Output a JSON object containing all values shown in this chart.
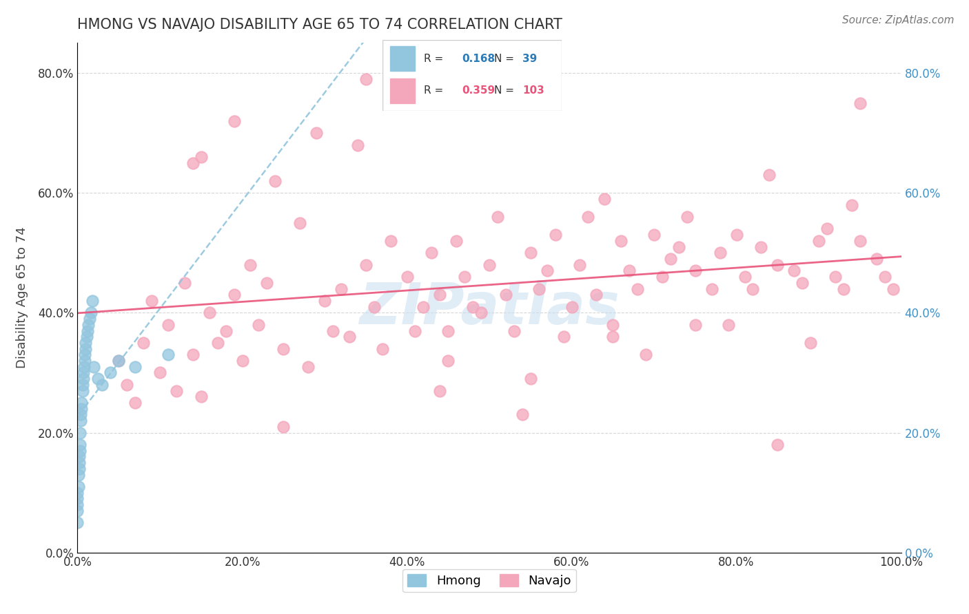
{
  "title": "HMONG VS NAVAJO DISABILITY AGE 65 TO 74 CORRELATION CHART",
  "source_text": "Source: ZipAtlas.com",
  "ylabel": "Disability Age 65 to 74",
  "xlim": [
    0.0,
    1.0
  ],
  "ylim": [
    0.0,
    0.85
  ],
  "xticks": [
    0.0,
    0.2,
    0.4,
    0.6,
    0.8,
    1.0
  ],
  "yticks": [
    0.0,
    0.2,
    0.4,
    0.6,
    0.8
  ],
  "ytick_labels": [
    "0.0%",
    "20.0%",
    "40.0%",
    "60.0%",
    "80.0%"
  ],
  "xtick_labels": [
    "0.0%",
    "20.0%",
    "40.0%",
    "60.0%",
    "80.0%",
    "100.0%"
  ],
  "legend_r_hmong": "0.168",
  "legend_n_hmong": "39",
  "legend_r_navajo": "0.359",
  "legend_n_navajo": "103",
  "hmong_color": "#92c5de",
  "navajo_color": "#f4a6bb",
  "hmong_line_color": "#92c5de",
  "navajo_line_color": "#e8547a",
  "watermark": "ZIPatlas",
  "title_color": "#333333",
  "right_tick_color": "#4292c6",
  "hmong_x": [
    0.0,
    0.0,
    0.0,
    0.0,
    0.0,
    0.001,
    0.001,
    0.002,
    0.002,
    0.002,
    0.003,
    0.003,
    0.003,
    0.004,
    0.004,
    0.005,
    0.005,
    0.006,
    0.006,
    0.007,
    0.007,
    0.008,
    0.009,
    0.009,
    0.01,
    0.01,
    0.011,
    0.012,
    0.013,
    0.015,
    0.016,
    0.018,
    0.02,
    0.025,
    0.03,
    0.04,
    0.05,
    0.07,
    0.11
  ],
  "hmong_y": [
    0.05,
    0.07,
    0.08,
    0.09,
    0.1,
    0.11,
    0.13,
    0.14,
    0.15,
    0.16,
    0.17,
    0.18,
    0.2,
    0.22,
    0.23,
    0.24,
    0.25,
    0.27,
    0.28,
    0.29,
    0.3,
    0.31,
    0.32,
    0.33,
    0.34,
    0.35,
    0.36,
    0.37,
    0.38,
    0.39,
    0.4,
    0.42,
    0.31,
    0.29,
    0.28,
    0.3,
    0.32,
    0.31,
    0.33
  ],
  "navajo_x": [
    0.05,
    0.06,
    0.07,
    0.08,
    0.09,
    0.1,
    0.11,
    0.12,
    0.13,
    0.14,
    0.15,
    0.16,
    0.17,
    0.18,
    0.19,
    0.2,
    0.21,
    0.22,
    0.23,
    0.25,
    0.27,
    0.28,
    0.3,
    0.31,
    0.32,
    0.33,
    0.35,
    0.36,
    0.37,
    0.38,
    0.4,
    0.41,
    0.42,
    0.43,
    0.44,
    0.45,
    0.46,
    0.47,
    0.48,
    0.5,
    0.51,
    0.52,
    0.53,
    0.55,
    0.56,
    0.57,
    0.58,
    0.6,
    0.61,
    0.62,
    0.63,
    0.65,
    0.66,
    0.67,
    0.68,
    0.7,
    0.71,
    0.72,
    0.73,
    0.75,
    0.77,
    0.78,
    0.8,
    0.81,
    0.82,
    0.83,
    0.85,
    0.87,
    0.88,
    0.9,
    0.91,
    0.92,
    0.93,
    0.95,
    0.97,
    0.98,
    0.99,
    0.14,
    0.24,
    0.34,
    0.44,
    0.54,
    0.64,
    0.74,
    0.84,
    0.94,
    0.19,
    0.29,
    0.39,
    0.49,
    0.59,
    0.69,
    0.79,
    0.89,
    0.35,
    0.55,
    0.75,
    0.95,
    0.25,
    0.65,
    0.45,
    0.85,
    0.15
  ],
  "navajo_y": [
    0.32,
    0.28,
    0.25,
    0.35,
    0.42,
    0.3,
    0.38,
    0.27,
    0.45,
    0.33,
    0.26,
    0.4,
    0.35,
    0.37,
    0.43,
    0.32,
    0.48,
    0.38,
    0.45,
    0.34,
    0.55,
    0.31,
    0.42,
    0.37,
    0.44,
    0.36,
    0.48,
    0.41,
    0.34,
    0.52,
    0.46,
    0.37,
    0.41,
    0.5,
    0.43,
    0.37,
    0.52,
    0.46,
    0.41,
    0.48,
    0.56,
    0.43,
    0.37,
    0.5,
    0.44,
    0.47,
    0.53,
    0.41,
    0.48,
    0.56,
    0.43,
    0.38,
    0.52,
    0.47,
    0.44,
    0.53,
    0.46,
    0.49,
    0.51,
    0.47,
    0.44,
    0.5,
    0.53,
    0.46,
    0.44,
    0.51,
    0.48,
    0.47,
    0.45,
    0.52,
    0.54,
    0.46,
    0.44,
    0.52,
    0.49,
    0.46,
    0.44,
    0.65,
    0.62,
    0.68,
    0.27,
    0.23,
    0.59,
    0.56,
    0.63,
    0.58,
    0.72,
    0.7,
    0.75,
    0.4,
    0.36,
    0.33,
    0.38,
    0.35,
    0.79,
    0.29,
    0.38,
    0.75,
    0.21,
    0.36,
    0.32,
    0.18,
    0.66
  ]
}
